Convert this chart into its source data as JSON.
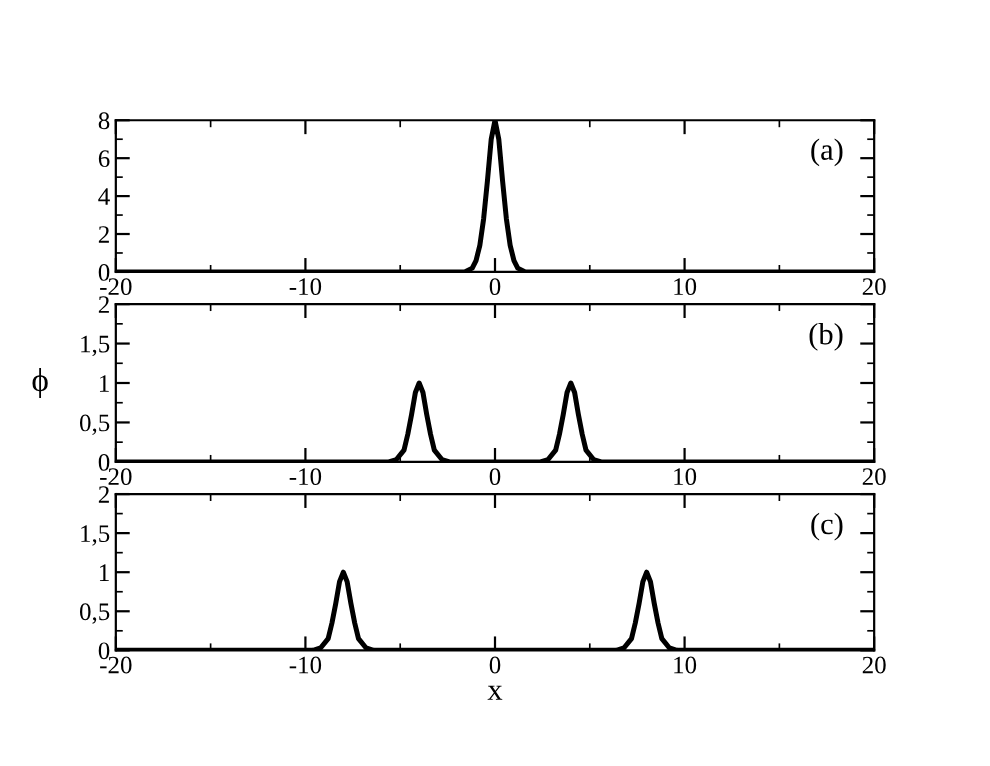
{
  "chart_data": [
    {
      "type": "line",
      "annotations": [
        "(a)"
      ],
      "xlim": [
        -20,
        20
      ],
      "ylim": [
        0,
        8
      ],
      "xticks": [
        -20,
        {
          "value": -15,
          "label": null
        },
        -10,
        {
          "value": -5,
          "label": null
        },
        0,
        {
          "value": 5,
          "label": null
        },
        10,
        {
          "value": 15,
          "label": null
        },
        20
      ],
      "yticks": [
        0,
        {
          "value": 1,
          "label": null
        },
        2,
        {
          "value": 3,
          "label": null
        },
        4,
        {
          "value": 5,
          "label": null
        },
        6,
        {
          "value": 7,
          "label": null
        },
        8
      ],
      "series": [
        {
          "color": "#000000",
          "x": [
            -20,
            -1.6,
            -1.2,
            -1.0,
            -0.8,
            -0.6,
            -0.4,
            -0.2,
            0,
            0.2,
            0.4,
            0.6,
            0.8,
            1.0,
            1.2,
            1.6,
            20
          ],
          "values": [
            0,
            0,
            0.2,
            0.6,
            1.4,
            2.8,
            4.8,
            7.0,
            8,
            7.0,
            4.8,
            2.8,
            1.4,
            0.6,
            0.2,
            0,
            0
          ]
        }
      ]
    },
    {
      "type": "line",
      "annotations": [
        "(b)"
      ],
      "ylabel": "ϕ",
      "xlim": [
        -20,
        20
      ],
      "ylim": [
        0,
        2
      ],
      "xticks": [
        -20,
        {
          "value": -15,
          "label": null
        },
        -10,
        {
          "value": -5,
          "label": null
        },
        0,
        {
          "value": 5,
          "label": null
        },
        10,
        {
          "value": 15,
          "label": null
        },
        20
      ],
      "yticks": [
        0,
        {
          "value": 0.25,
          "label": null
        },
        {
          "value": 0.5,
          "label": "0,5"
        },
        {
          "value": 0.75,
          "label": null
        },
        1,
        {
          "value": 1.25,
          "label": null
        },
        {
          "value": 1.5,
          "label": "1,5"
        },
        {
          "value": 1.75,
          "label": null
        },
        2
      ],
      "series": [
        {
          "color": "#000000",
          "x": [
            -20,
            -5.6,
            -5.2,
            -4.8,
            -4.6,
            -4.4,
            -4.2,
            -4,
            -3.8,
            -3.6,
            -3.4,
            -3.2,
            -2.8,
            -2.4,
            2.4,
            2.8,
            3.2,
            3.4,
            3.6,
            3.8,
            4,
            4.2,
            4.4,
            4.6,
            4.8,
            5.2,
            5.6,
            20
          ],
          "values": [
            0,
            0,
            0.03,
            0.15,
            0.35,
            0.6,
            0.88,
            1,
            0.88,
            0.6,
            0.35,
            0.15,
            0.03,
            0,
            0,
            0.03,
            0.15,
            0.35,
            0.6,
            0.88,
            1,
            0.88,
            0.6,
            0.35,
            0.15,
            0.03,
            0,
            0
          ]
        }
      ]
    },
    {
      "type": "line",
      "annotations": [
        "(c)"
      ],
      "xlabel": "x",
      "xlim": [
        -20,
        20
      ],
      "ylim": [
        0,
        2
      ],
      "xticks": [
        -20,
        {
          "value": -15,
          "label": null
        },
        -10,
        {
          "value": -5,
          "label": null
        },
        0,
        {
          "value": 5,
          "label": null
        },
        10,
        {
          "value": 15,
          "label": null
        },
        20
      ],
      "yticks": [
        0,
        {
          "value": 0.25,
          "label": null
        },
        {
          "value": 0.5,
          "label": "0,5"
        },
        {
          "value": 0.75,
          "label": null
        },
        1,
        {
          "value": 1.25,
          "label": null
        },
        {
          "value": 1.5,
          "label": "1,5"
        },
        {
          "value": 1.75,
          "label": null
        },
        2
      ],
      "series": [
        {
          "color": "#000000",
          "x": [
            -20,
            -9.6,
            -9.2,
            -8.8,
            -8.6,
            -8.4,
            -8.2,
            -8,
            -7.8,
            -7.6,
            -7.4,
            -7.2,
            -6.8,
            -6.4,
            6.4,
            6.8,
            7.2,
            7.4,
            7.6,
            7.8,
            8,
            8.2,
            8.4,
            8.6,
            8.8,
            9.2,
            9.6,
            20
          ],
          "values": [
            0,
            0,
            0.03,
            0.15,
            0.35,
            0.6,
            0.88,
            1,
            0.88,
            0.6,
            0.35,
            0.15,
            0.03,
            0,
            0,
            0.03,
            0.15,
            0.35,
            0.6,
            0.88,
            1,
            0.88,
            0.6,
            0.35,
            0.15,
            0.03,
            0,
            0
          ]
        }
      ]
    }
  ]
}
